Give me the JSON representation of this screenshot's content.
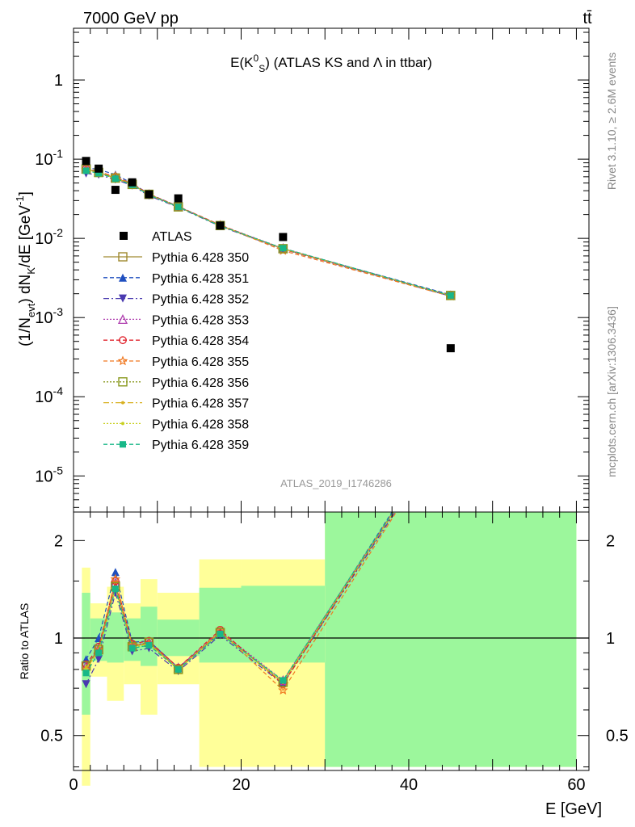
{
  "header": {
    "left": "7000 GeV pp",
    "right": "tt̄"
  },
  "side_labels": {
    "rivet": "Rivet 3.1.10, ≥ 2.6M events",
    "mcplots": "mcplots.cern.ch [arXiv:1306.3436]"
  },
  "chart_data": [
    {
      "type": "scatter",
      "panel": "main",
      "title": "E(K⁰_S) (ATLAS KS and Λ in ttbar)",
      "title_parts": {
        "prefix": "E(K",
        "sup": "0",
        "sub": "S",
        "suffix": ") (ATLAS KS and Λ in ttbar)"
      },
      "analysis_id": "ATLAS_2019_I1746286",
      "ylabel": "(1/N_evt) dN_K/dE [GeV⁻¹]",
      "ylabel_parts": {
        "a": "(1/N",
        "a_sub": "evt",
        "b": ") dN",
        "b_sub": "K",
        "c": "/dE [GeV",
        "c_sup": "-1",
        "d": "]"
      },
      "yscale": "log",
      "ylim": [
        3.5e-06,
        4.5
      ],
      "xlim": [
        0,
        61.5
      ],
      "yticks": [
        {
          "value": 1,
          "base": "1",
          "exp": ""
        },
        {
          "value": 0.1,
          "base": "10",
          "exp": "-1"
        },
        {
          "value": 0.01,
          "base": "10",
          "exp": "-2"
        },
        {
          "value": 0.001,
          "base": "10",
          "exp": "-3"
        },
        {
          "value": 0.0001,
          "base": "10",
          "exp": "-4"
        },
        {
          "value": 1e-05,
          "base": "10",
          "exp": "-5"
        }
      ],
      "legend_position": "left-middle",
      "x": [
        1.5,
        3,
        5,
        7,
        9,
        12.5,
        17.5,
        25,
        45
      ],
      "atlas": {
        "name": "ATLAS",
        "values": [
          0.095,
          0.076,
          0.041,
          0.051,
          0.036,
          0.032,
          0.0145,
          0.0104,
          0.00041
        ]
      },
      "mc_reference": [
        0.075,
        0.068,
        0.058,
        0.048,
        0.036,
        0.025,
        0.0145,
        0.0074,
        0.0019
      ],
      "series": [
        {
          "name": "Pythia 6.428 350",
          "color": "#a08a30",
          "marker": "open-square",
          "dash": "",
          "ratio": [
            0.82,
            0.92,
            1.45,
            0.94,
            0.97,
            0.8,
            1.04,
            0.73,
            4.6
          ]
        },
        {
          "name": "Pythia 6.428 351",
          "color": "#1f4fbf",
          "marker": "triangle-up",
          "dash": "5,3",
          "ratio": [
            0.86,
            1.0,
            1.6,
            0.97,
            0.98,
            0.81,
            1.04,
            0.73,
            4.7
          ]
        },
        {
          "name": "Pythia 6.428 352",
          "color": "#4a3ab0",
          "marker": "triangle-down",
          "dash": "7,3,2,3",
          "ratio": [
            0.72,
            0.86,
            1.38,
            0.91,
            0.93,
            0.79,
            1.02,
            0.72,
            4.5
          ]
        },
        {
          "name": "Pythia 6.428 353",
          "color": "#b040b0",
          "marker": "open-triangle",
          "dash": "2,2",
          "ratio": [
            0.82,
            0.93,
            1.48,
            0.95,
            0.97,
            0.81,
            1.05,
            0.74,
            4.6
          ]
        },
        {
          "name": "Pythia 6.428 354",
          "color": "#e0202a",
          "marker": "open-circle",
          "dash": "5,3",
          "ratio": [
            0.83,
            0.94,
            1.5,
            0.96,
            0.98,
            0.81,
            1.06,
            0.72,
            4.6
          ]
        },
        {
          "name": "Pythia 6.428 355",
          "color": "#f07820",
          "marker": "open-star",
          "dash": "5,3",
          "ratio": [
            0.8,
            0.92,
            1.52,
            0.95,
            0.96,
            0.8,
            1.05,
            0.69,
            4.5
          ]
        },
        {
          "name": "Pythia 6.428 356",
          "color": "#8a9a20",
          "marker": "open-square",
          "dash": "2,2",
          "ratio": [
            0.82,
            0.92,
            1.44,
            0.94,
            0.97,
            0.8,
            1.04,
            0.73,
            4.6
          ]
        },
        {
          "name": "Pythia 6.428 357",
          "color": "#d8b020",
          "marker": "small-dot",
          "dash": "7,3,2,3",
          "ratio": [
            0.81,
            0.91,
            1.43,
            0.94,
            0.96,
            0.8,
            1.04,
            0.73,
            4.6
          ]
        },
        {
          "name": "Pythia 6.428 358",
          "color": "#c8d020",
          "marker": "small-dot",
          "dash": "2,2",
          "ratio": [
            0.8,
            0.91,
            1.42,
            0.93,
            0.96,
            0.8,
            1.03,
            0.73,
            4.6
          ]
        },
        {
          "name": "Pythia 6.428 359",
          "color": "#18b888",
          "marker": "filled-square",
          "dash": "5,3",
          "ratio": [
            0.78,
            0.9,
            1.42,
            0.93,
            0.95,
            0.8,
            1.03,
            0.74,
            4.6
          ]
        }
      ]
    },
    {
      "type": "line",
      "panel": "ratio",
      "ylabel": "Ratio to ATLAS",
      "xlabel": "E [GeV]",
      "yscale": "log",
      "ylim": [
        0.39,
        2.45
      ],
      "xlim": [
        0,
        61.5
      ],
      "yticks": [
        0.5,
        1,
        2
      ],
      "xticks": [
        0,
        20,
        40,
        60
      ],
      "reference_line": 1,
      "bands": [
        {
          "x": [
            1,
            2
          ],
          "inner": [
            0.58,
            1.38
          ],
          "outer": [
            0.35,
            1.65
          ]
        },
        {
          "x": [
            2,
            4
          ],
          "inner": [
            0.85,
            1.15
          ],
          "outer": [
            0.76,
            1.28
          ]
        },
        {
          "x": [
            4,
            6
          ],
          "inner": [
            0.84,
            1.2
          ],
          "outer": [
            0.64,
            1.44
          ]
        },
        {
          "x": [
            6,
            8
          ],
          "inner": [
            0.85,
            1.15
          ],
          "outer": [
            0.72,
            1.28
          ]
        },
        {
          "x": [
            8,
            10
          ],
          "inner": [
            0.82,
            1.25
          ],
          "outer": [
            0.58,
            1.52
          ]
        },
        {
          "x": [
            10,
            15
          ],
          "inner": [
            0.88,
            1.14
          ],
          "outer": [
            0.72,
            1.38
          ]
        },
        {
          "x": [
            15,
            20
          ],
          "inner": [
            0.84,
            1.43
          ],
          "outer": [
            0.4,
            1.75
          ]
        },
        {
          "x": [
            20,
            30
          ],
          "inner": [
            0.84,
            1.45
          ],
          "outer": [
            0.4,
            1.75
          ]
        },
        {
          "x": [
            30,
            60
          ],
          "inner": [
            0.4,
            2.45
          ],
          "outer": [
            0.4,
            2.45
          ]
        }
      ],
      "band_colors": {
        "inner": "#9cf79c",
        "outer": "#ffff99"
      }
    }
  ]
}
